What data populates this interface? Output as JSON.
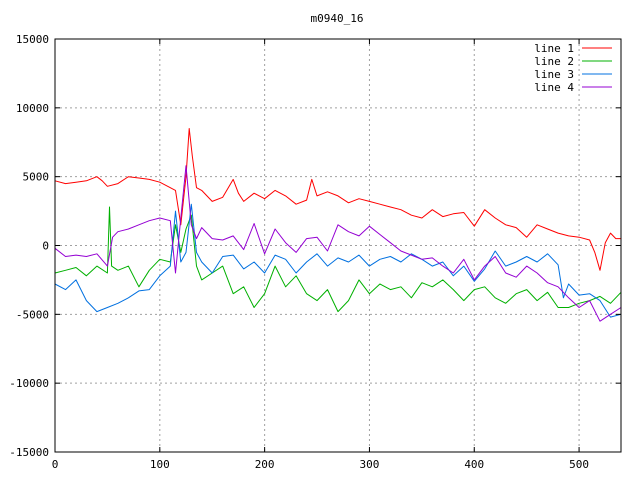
{
  "chart_data": {
    "type": "line",
    "title": "m0940_16",
    "xlabel": "",
    "ylabel": "",
    "xlim": [
      0,
      540
    ],
    "ylim": [
      -15000,
      15000
    ],
    "xticks": [
      0,
      100,
      200,
      300,
      400,
      500
    ],
    "yticks": [
      -15000,
      -10000,
      -5000,
      0,
      5000,
      10000,
      15000
    ],
    "grid": true,
    "legend_position": "top-right",
    "series": [
      {
        "name": "line 1",
        "color": "#ff0000",
        "x": [
          0,
          10,
          20,
          30,
          40,
          45,
          50,
          60,
          70,
          80,
          90,
          100,
          110,
          115,
          120,
          125,
          128,
          131,
          135,
          140,
          150,
          160,
          170,
          175,
          180,
          190,
          200,
          210,
          220,
          230,
          240,
          245,
          250,
          260,
          270,
          280,
          290,
          300,
          310,
          320,
          330,
          340,
          350,
          360,
          370,
          380,
          390,
          400,
          410,
          420,
          430,
          440,
          450,
          460,
          470,
          480,
          490,
          500,
          510,
          515,
          520,
          525,
          530,
          535,
          540
        ],
        "y": [
          4700,
          4500,
          4600,
          4700,
          5000,
          4700,
          4300,
          4500,
          5000,
          4900,
          4800,
          4600,
          4200,
          4000,
          1500,
          5000,
          8500,
          6500,
          4200,
          4000,
          3200,
          3500,
          4800,
          3800,
          3200,
          3800,
          3400,
          4000,
          3600,
          3000,
          3300,
          4800,
          3600,
          3900,
          3600,
          3100,
          3400,
          3200,
          3000,
          2800,
          2600,
          2200,
          2000,
          2600,
          2100,
          2300,
          2400,
          1400,
          2600,
          2000,
          1500,
          1300,
          600,
          1500,
          1200,
          900,
          700,
          600,
          400,
          -500,
          -1800,
          200,
          900,
          500,
          500
        ]
      },
      {
        "name": "line 2",
        "color": "#00b000",
        "x": [
          0,
          10,
          20,
          30,
          40,
          50,
          52,
          54,
          60,
          70,
          80,
          90,
          100,
          110,
          115,
          120,
          125,
          130,
          135,
          140,
          150,
          160,
          170,
          180,
          190,
          200,
          210,
          220,
          230,
          240,
          250,
          260,
          270,
          280,
          290,
          300,
          310,
          320,
          330,
          340,
          350,
          360,
          370,
          380,
          390,
          400,
          410,
          420,
          430,
          440,
          450,
          460,
          470,
          480,
          490,
          500,
          510,
          520,
          530,
          540
        ],
        "y": [
          -2000,
          -1800,
          -1600,
          -2200,
          -1500,
          -2000,
          2800,
          -1500,
          -1800,
          -1500,
          -3000,
          -1800,
          -1000,
          -1200,
          1500,
          -500,
          1200,
          2200,
          -1500,
          -2500,
          -2000,
          -1500,
          -3500,
          -3000,
          -4500,
          -3500,
          -1500,
          -3000,
          -2200,
          -3500,
          -4000,
          -3200,
          -4800,
          -4000,
          -2500,
          -3500,
          -2800,
          -3200,
          -3000,
          -3800,
          -2700,
          -3000,
          -2500,
          -3200,
          -4000,
          -3200,
          -3000,
          -3800,
          -4200,
          -3500,
          -3200,
          -4000,
          -3400,
          -4500,
          -4500,
          -4200,
          -4000,
          -3700,
          -4200,
          -3400
        ]
      },
      {
        "name": "line 3",
        "color": "#0070e0",
        "x": [
          0,
          10,
          20,
          30,
          40,
          50,
          60,
          70,
          80,
          90,
          100,
          110,
          115,
          120,
          125,
          130,
          135,
          140,
          150,
          160,
          170,
          180,
          190,
          200,
          210,
          220,
          230,
          240,
          250,
          260,
          270,
          280,
          290,
          300,
          310,
          320,
          330,
          340,
          350,
          360,
          370,
          380,
          390,
          400,
          410,
          420,
          430,
          440,
          450,
          460,
          470,
          480,
          485,
          490,
          500,
          510,
          520,
          530,
          540
        ],
        "y": [
          -2800,
          -3200,
          -2500,
          -4000,
          -4800,
          -4500,
          -4200,
          -3800,
          -3300,
          -3200,
          -2200,
          -1500,
          2500,
          -1200,
          -500,
          3000,
          -500,
          -1200,
          -2000,
          -800,
          -700,
          -1700,
          -1200,
          -2000,
          -700,
          -1000,
          -2000,
          -1200,
          -600,
          -1500,
          -900,
          -1200,
          -700,
          -1500,
          -1000,
          -800,
          -1200,
          -600,
          -1000,
          -1500,
          -1200,
          -2200,
          -1500,
          -2600,
          -1700,
          -400,
          -1500,
          -1200,
          -800,
          -1200,
          -600,
          -1400,
          -3800,
          -2800,
          -3600,
          -3500,
          -4000,
          -5200,
          -5000
        ]
      },
      {
        "name": "line 4",
        "color": "#9400d3",
        "x": [
          0,
          10,
          20,
          30,
          40,
          50,
          55,
          60,
          70,
          80,
          90,
          100,
          110,
          115,
          120,
          125,
          130,
          135,
          140,
          150,
          160,
          170,
          180,
          190,
          200,
          210,
          220,
          230,
          240,
          250,
          260,
          270,
          280,
          290,
          300,
          310,
          320,
          330,
          340,
          350,
          360,
          370,
          380,
          390,
          400,
          410,
          420,
          430,
          440,
          450,
          460,
          470,
          480,
          490,
          500,
          510,
          520,
          530,
          540
        ],
        "y": [
          -200,
          -800,
          -700,
          -800,
          -600,
          -1500,
          600,
          1000,
          1200,
          1500,
          1800,
          2000,
          1800,
          -2000,
          2000,
          5800,
          1500,
          500,
          1300,
          500,
          400,
          700,
          -300,
          1600,
          -600,
          1200,
          200,
          -500,
          500,
          600,
          -400,
          1500,
          1000,
          700,
          1400,
          800,
          200,
          -400,
          -700,
          -1000,
          -900,
          -1500,
          -2000,
          -1000,
          -2500,
          -1500,
          -800,
          -2000,
          -2300,
          -1500,
          -2000,
          -2700,
          -3000,
          -3800,
          -4500,
          -4000,
          -5500,
          -5000,
          -4500
        ]
      }
    ]
  }
}
